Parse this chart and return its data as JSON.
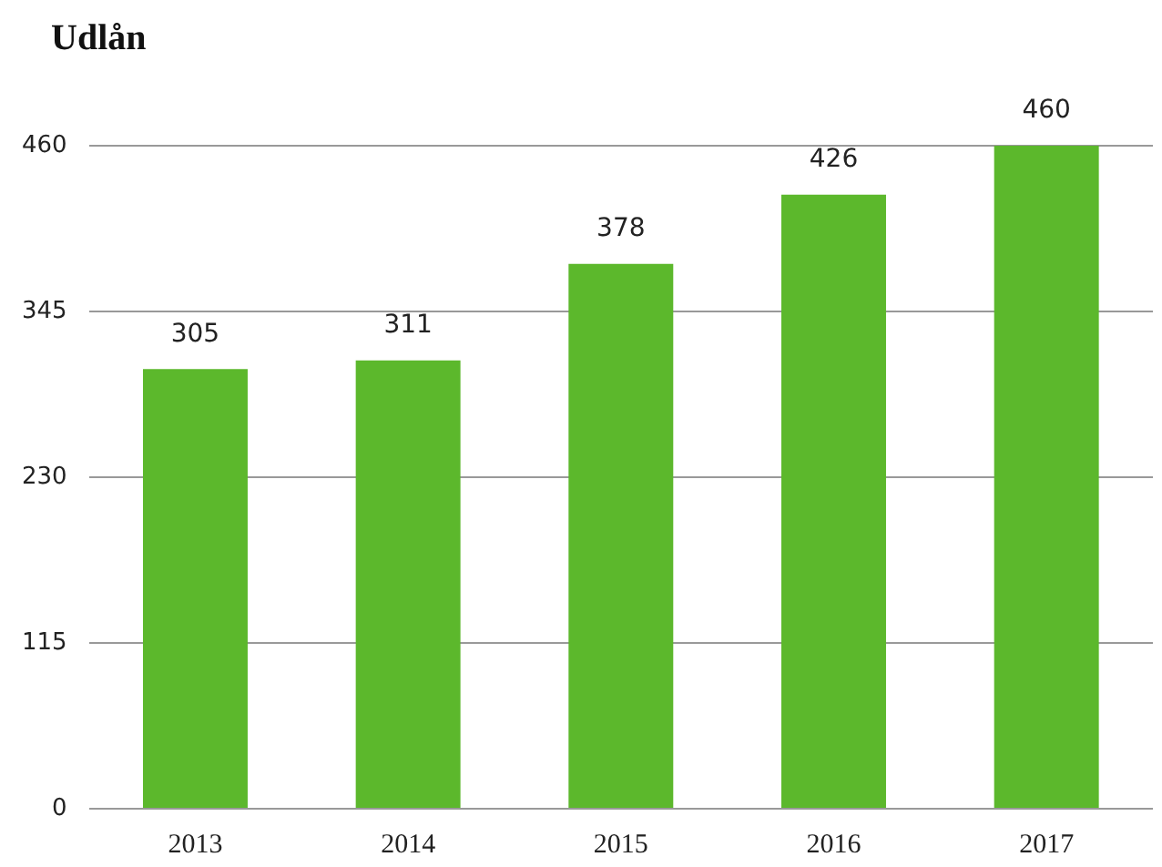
{
  "chart_data": {
    "type": "bar",
    "title": "Udlån",
    "categories": [
      "2013",
      "2014",
      "2015",
      "2016",
      "2017"
    ],
    "values": [
      305,
      311,
      378,
      426,
      460
    ],
    "color": "#5cb82c",
    "ylim": [
      0,
      460
    ],
    "yticks": [
      0,
      115,
      230,
      345,
      460
    ],
    "grid": "y",
    "data_labels": true,
    "legend": false
  }
}
